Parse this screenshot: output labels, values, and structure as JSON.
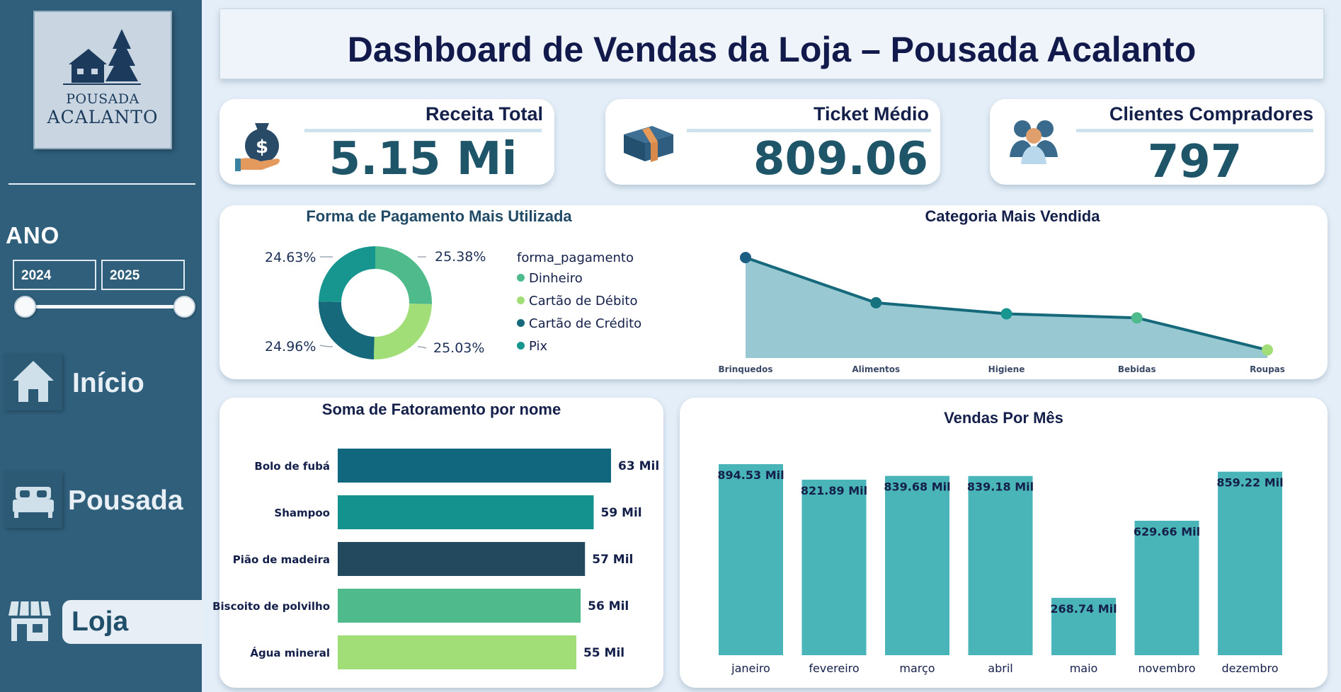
{
  "sidebar": {
    "logo": {
      "line1": "POUSADA",
      "line2": "ACALANTO"
    },
    "year_filter": {
      "label": "ANO",
      "start": "2024",
      "end": "2025"
    },
    "nav": [
      {
        "label": "Início",
        "icon": "home-icon"
      },
      {
        "label": "Pousada",
        "icon": "bed-icon"
      },
      {
        "label": "Loja",
        "icon": "store-icon",
        "active": true
      }
    ]
  },
  "header": {
    "title": "Dashboard de Vendas da Loja – Pousada Acalanto"
  },
  "kpis": [
    {
      "title": "Receita Total",
      "value": "5.15 Mi",
      "icon": "money-bag-icon"
    },
    {
      "title": "Ticket Médio",
      "value": "809.06",
      "icon": "cash-stack-icon"
    },
    {
      "title": "Clientes Compradores",
      "value": "797",
      "icon": "customers-icon"
    }
  ],
  "colors": {
    "sidebar": "#2f5f7b",
    "dinheiro": "#4fba8c",
    "debito": "#a2de78",
    "credito": "#15697b",
    "pix": "#17958f",
    "area_fill": "#8dc2cc",
    "bar_month": "#4ab5b8"
  },
  "chart_data": [
    {
      "type": "pie",
      "title": "Forma de Pagamento Mais Utilizada",
      "legend_title": "forma_pagamento",
      "labels": [
        "Dinheiro",
        "Cartão de Débito",
        "Cartão de Crédito",
        "Pix"
      ],
      "values": [
        25.38,
        25.03,
        24.96,
        24.63
      ],
      "value_labels": [
        "25.38%",
        "25.03%",
        "24.96%",
        "24.63%"
      ]
    },
    {
      "type": "area",
      "title": "Categoria Mais Vendida",
      "categories": [
        "Brinquedos",
        "Alimentos",
        "Higiene",
        "Bebidas",
        "Roupas"
      ],
      "values": [
        100,
        55,
        44,
        40,
        8
      ]
    },
    {
      "type": "bar",
      "orientation": "horizontal",
      "title": "Soma de Fatoramento por nome",
      "categories": [
        "Bolo de fubá",
        "Shampoo",
        "Pião de madeira",
        "Biscoito de polvilho",
        "Água mineral"
      ],
      "values": [
        63,
        59,
        57,
        56,
        55
      ],
      "value_labels": [
        "63 Mil",
        "59 Mil",
        "57 Mil",
        "56 Mil",
        "55 Mil"
      ]
    },
    {
      "type": "bar",
      "title": "Vendas Por Mês",
      "categories": [
        "janeiro",
        "fevereiro",
        "março",
        "abril",
        "maio",
        "novembro",
        "dezembro"
      ],
      "values": [
        894.53,
        821.89,
        839.68,
        839.18,
        268.74,
        629.66,
        859.22
      ],
      "value_labels": [
        "894.53 Mil",
        "821.89 Mil",
        "839.68 Mil",
        "839.18 Mil",
        "268.74 Mil",
        "629.66 Mil",
        "859.22 Mil"
      ]
    }
  ]
}
